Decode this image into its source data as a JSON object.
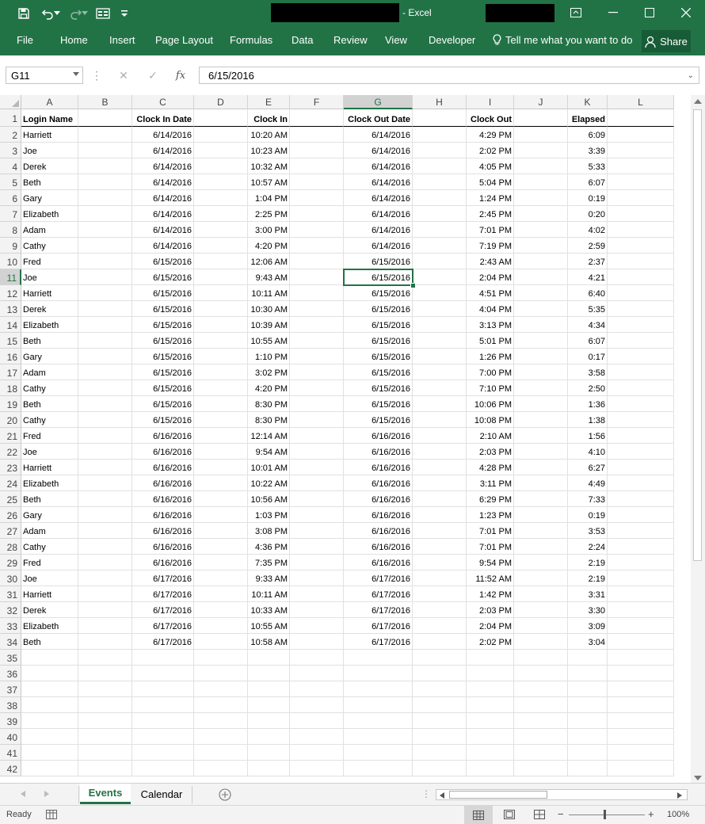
{
  "window": {
    "title": "- Excel"
  },
  "ribbon": {
    "tabs": [
      "File",
      "Home",
      "Insert",
      "Page Layout",
      "Formulas",
      "Data",
      "Review",
      "View",
      "Developer"
    ],
    "tell_me": "Tell me what you want to do",
    "share": "Share"
  },
  "formula_bar": {
    "name_box": "G11",
    "formula": "6/15/2016",
    "fx": "fx"
  },
  "columns": [
    "A",
    "B",
    "C",
    "D",
    "E",
    "F",
    "G",
    "H",
    "I",
    "J",
    "K",
    "L"
  ],
  "selected_cell": "G11",
  "sheet": {
    "header": [
      "Login Name",
      "",
      "Clock In Date",
      "",
      "Clock In",
      "",
      "Clock Out Date",
      "",
      "Clock Out",
      "",
      "Elapsed"
    ],
    "rows": [
      [
        "Harriett",
        "6/14/2016",
        "10:20 AM",
        "6/14/2016",
        "4:29 PM",
        "6:09"
      ],
      [
        "Joe",
        "6/14/2016",
        "10:23 AM",
        "6/14/2016",
        "2:02 PM",
        "3:39"
      ],
      [
        "Derek",
        "6/14/2016",
        "10:32 AM",
        "6/14/2016",
        "4:05 PM",
        "5:33"
      ],
      [
        "Beth",
        "6/14/2016",
        "10:57 AM",
        "6/14/2016",
        "5:04 PM",
        "6:07"
      ],
      [
        "Gary",
        "6/14/2016",
        "1:04 PM",
        "6/14/2016",
        "1:24 PM",
        "0:19"
      ],
      [
        "Elizabeth",
        "6/14/2016",
        "2:25 PM",
        "6/14/2016",
        "2:45 PM",
        "0:20"
      ],
      [
        "Adam",
        "6/14/2016",
        "3:00 PM",
        "6/14/2016",
        "7:01 PM",
        "4:02"
      ],
      [
        "Cathy",
        "6/14/2016",
        "4:20 PM",
        "6/14/2016",
        "7:19 PM",
        "2:59"
      ],
      [
        "Fred",
        "6/15/2016",
        "12:06 AM",
        "6/15/2016",
        "2:43 AM",
        "2:37"
      ],
      [
        "Joe",
        "6/15/2016",
        "9:43 AM",
        "6/15/2016",
        "2:04 PM",
        "4:21"
      ],
      [
        "Harriett",
        "6/15/2016",
        "10:11 AM",
        "6/15/2016",
        "4:51 PM",
        "6:40"
      ],
      [
        "Derek",
        "6/15/2016",
        "10:30 AM",
        "6/15/2016",
        "4:04 PM",
        "5:35"
      ],
      [
        "Elizabeth",
        "6/15/2016",
        "10:39 AM",
        "6/15/2016",
        "3:13 PM",
        "4:34"
      ],
      [
        "Beth",
        "6/15/2016",
        "10:55 AM",
        "6/15/2016",
        "5:01 PM",
        "6:07"
      ],
      [
        "Gary",
        "6/15/2016",
        "1:10 PM",
        "6/15/2016",
        "1:26 PM",
        "0:17"
      ],
      [
        "Adam",
        "6/15/2016",
        "3:02 PM",
        "6/15/2016",
        "7:00 PM",
        "3:58"
      ],
      [
        "Cathy",
        "6/15/2016",
        "4:20 PM",
        "6/15/2016",
        "7:10 PM",
        "2:50"
      ],
      [
        "Beth",
        "6/15/2016",
        "8:30 PM",
        "6/15/2016",
        "10:06 PM",
        "1:36"
      ],
      [
        "Cathy",
        "6/15/2016",
        "8:30 PM",
        "6/15/2016",
        "10:08 PM",
        "1:38"
      ],
      [
        "Fred",
        "6/16/2016",
        "12:14 AM",
        "6/16/2016",
        "2:10 AM",
        "1:56"
      ],
      [
        "Joe",
        "6/16/2016",
        "9:54 AM",
        "6/16/2016",
        "2:03 PM",
        "4:10"
      ],
      [
        "Harriett",
        "6/16/2016",
        "10:01 AM",
        "6/16/2016",
        "4:28 PM",
        "6:27"
      ],
      [
        "Elizabeth",
        "6/16/2016",
        "10:22 AM",
        "6/16/2016",
        "3:11 PM",
        "4:49"
      ],
      [
        "Beth",
        "6/16/2016",
        "10:56 AM",
        "6/16/2016",
        "6:29 PM",
        "7:33"
      ],
      [
        "Gary",
        "6/16/2016",
        "1:03 PM",
        "6/16/2016",
        "1:23 PM",
        "0:19"
      ],
      [
        "Adam",
        "6/16/2016",
        "3:08 PM",
        "6/16/2016",
        "7:01 PM",
        "3:53"
      ],
      [
        "Cathy",
        "6/16/2016",
        "4:36 PM",
        "6/16/2016",
        "7:01 PM",
        "2:24"
      ],
      [
        "Fred",
        "6/16/2016",
        "7:35 PM",
        "6/16/2016",
        "9:54 PM",
        "2:19"
      ],
      [
        "Joe",
        "6/17/2016",
        "9:33 AM",
        "6/17/2016",
        "11:52 AM",
        "2:19"
      ],
      [
        "Harriett",
        "6/17/2016",
        "10:11 AM",
        "6/17/2016",
        "1:42 PM",
        "3:31"
      ],
      [
        "Derek",
        "6/17/2016",
        "10:33 AM",
        "6/17/2016",
        "2:03 PM",
        "3:30"
      ],
      [
        "Elizabeth",
        "6/17/2016",
        "10:55 AM",
        "6/17/2016",
        "2:04 PM",
        "3:09"
      ],
      [
        "Beth",
        "6/17/2016",
        "10:58 AM",
        "6/17/2016",
        "2:02 PM",
        "3:04"
      ]
    ],
    "row_count": 42
  },
  "sheet_tabs": [
    "Events",
    "Calendar"
  ],
  "active_sheet": "Events",
  "status": {
    "ready": "Ready",
    "zoom": "100%"
  },
  "colors": {
    "excel_green": "#217346",
    "share_bg": "#185c37"
  }
}
